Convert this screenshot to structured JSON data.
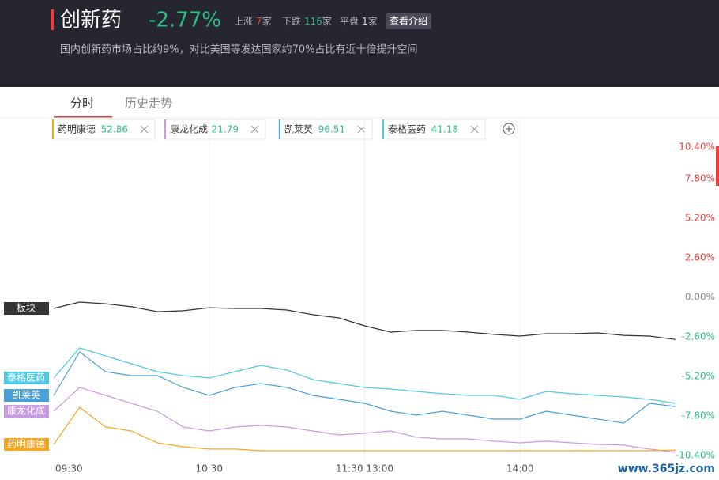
{
  "header": {
    "title": "创新药",
    "change": "-2.77%",
    "stats": [
      {
        "label": "上涨",
        "count": 7,
        "unit": "家",
        "color": "#e8413c"
      },
      {
        "label": "下跌",
        "count": 116,
        "unit": "家",
        "color": "#2ebd85"
      },
      {
        "label": "平盘",
        "count": 1,
        "unit": "家",
        "color": "#dddddd"
      }
    ],
    "button": "查看介绍",
    "subtitle": "国内创新药市场占比约9%，对比美国等发达国家约70%占比有近十倍提升空间"
  },
  "tabs": [
    "分时",
    "历史走势"
  ],
  "stocks": [
    {
      "name": "药明康德",
      "price": 52.86,
      "color": "#f5a623"
    },
    {
      "name": "康龙化成",
      "price": 21.79,
      "color": "#c89be0"
    },
    {
      "name": "凯莱英",
      "price": 96.51,
      "color": "#4a9fd8"
    },
    {
      "name": "泰格医药",
      "price": 41.18,
      "color": "#4fc8e0"
    }
  ],
  "watermark": "www.365jz.com",
  "chart_data": {
    "type": "line",
    "x": [
      0,
      10,
      20,
      30,
      40,
      50,
      60,
      70,
      80,
      90,
      100,
      110,
      120,
      130,
      140,
      150,
      160,
      170,
      180,
      190,
      200,
      210,
      220,
      230,
      240
    ],
    "xlim": [
      0,
      240
    ],
    "xticks": [
      {
        "value": 0,
        "label": "09:30"
      },
      {
        "value": 60,
        "label": "10:30"
      },
      {
        "value": 120,
        "label": "11:30 13:00"
      },
      {
        "value": 180,
        "label": "14:00"
      }
    ],
    "ylim": [
      -10.4,
      10.4
    ],
    "yticks": [
      {
        "value": 10.4,
        "label": "10.40%"
      },
      {
        "value": 7.8,
        "label": "7.80%"
      },
      {
        "value": 5.2,
        "label": "5.20%"
      },
      {
        "value": 2.6,
        "label": "2.60%"
      },
      {
        "value": 0,
        "label": "0.00%"
      },
      {
        "value": -2.6,
        "label": "-2.60%"
      },
      {
        "value": -5.2,
        "label": "-5.20%"
      },
      {
        "value": -7.8,
        "label": "-7.80%"
      },
      {
        "value": -10.4,
        "label": "-10.40%"
      }
    ],
    "grid": "x",
    "up_color": "#e8413c",
    "down_color": "#2ebd85",
    "series": [
      {
        "name": "板块",
        "color": "#333333",
        "values": [
          -0.73,
          -0.31,
          -0.42,
          -0.62,
          -0.94,
          -0.88,
          -0.68,
          -0.73,
          -0.73,
          -0.83,
          -1.14,
          -1.35,
          -1.87,
          -2.29,
          -2.18,
          -2.18,
          -2.29,
          -2.44,
          -2.55,
          -2.39,
          -2.39,
          -2.34,
          -2.5,
          -2.55,
          -2.77
        ]
      },
      {
        "name": "泰格医药",
        "color": "#4fc8e0",
        "values": [
          -5.3,
          -3.33,
          -3.85,
          -4.37,
          -4.89,
          -5.15,
          -5.3,
          -4.89,
          -4.47,
          -4.78,
          -5.41,
          -5.67,
          -5.93,
          -6.03,
          -6.19,
          -6.34,
          -6.45,
          -6.45,
          -6.71,
          -6.19,
          -6.34,
          -6.45,
          -6.55,
          -6.71,
          -6.97
        ]
      },
      {
        "name": "凯莱英",
        "color": "#4a9fd8",
        "values": [
          -6.45,
          -3.59,
          -4.89,
          -5.15,
          -5.15,
          -5.93,
          -6.45,
          -5.93,
          -5.67,
          -5.93,
          -6.45,
          -6.71,
          -6.97,
          -7.49,
          -7.75,
          -7.49,
          -7.75,
          -8.01,
          -8.01,
          -7.49,
          -7.75,
          -8.01,
          -8.27,
          -6.97,
          -7.18
        ]
      },
      {
        "name": "康龙化成",
        "color": "#c89be0",
        "values": [
          -7.49,
          -5.93,
          -6.45,
          -6.97,
          -7.49,
          -8.53,
          -8.79,
          -8.53,
          -8.42,
          -8.53,
          -8.79,
          -9.05,
          -8.94,
          -8.79,
          -9.2,
          -9.31,
          -9.31,
          -9.46,
          -9.57,
          -9.46,
          -9.57,
          -9.67,
          -9.72,
          -9.98,
          -10.19
        ]
      },
      {
        "name": "药明康德",
        "color": "#f5a623",
        "values": [
          -9.67,
          -7.23,
          -8.53,
          -8.79,
          -9.57,
          -9.83,
          -9.98,
          -9.98,
          -10.09,
          -10.09,
          -10.09,
          -10.09,
          -10.09,
          -10.09,
          -10.09,
          -10.09,
          -10.09,
          -10.09,
          -10.09,
          -10.09,
          -10.09,
          -10.09,
          -10.09,
          -10.09,
          -10.04
        ]
      }
    ]
  }
}
